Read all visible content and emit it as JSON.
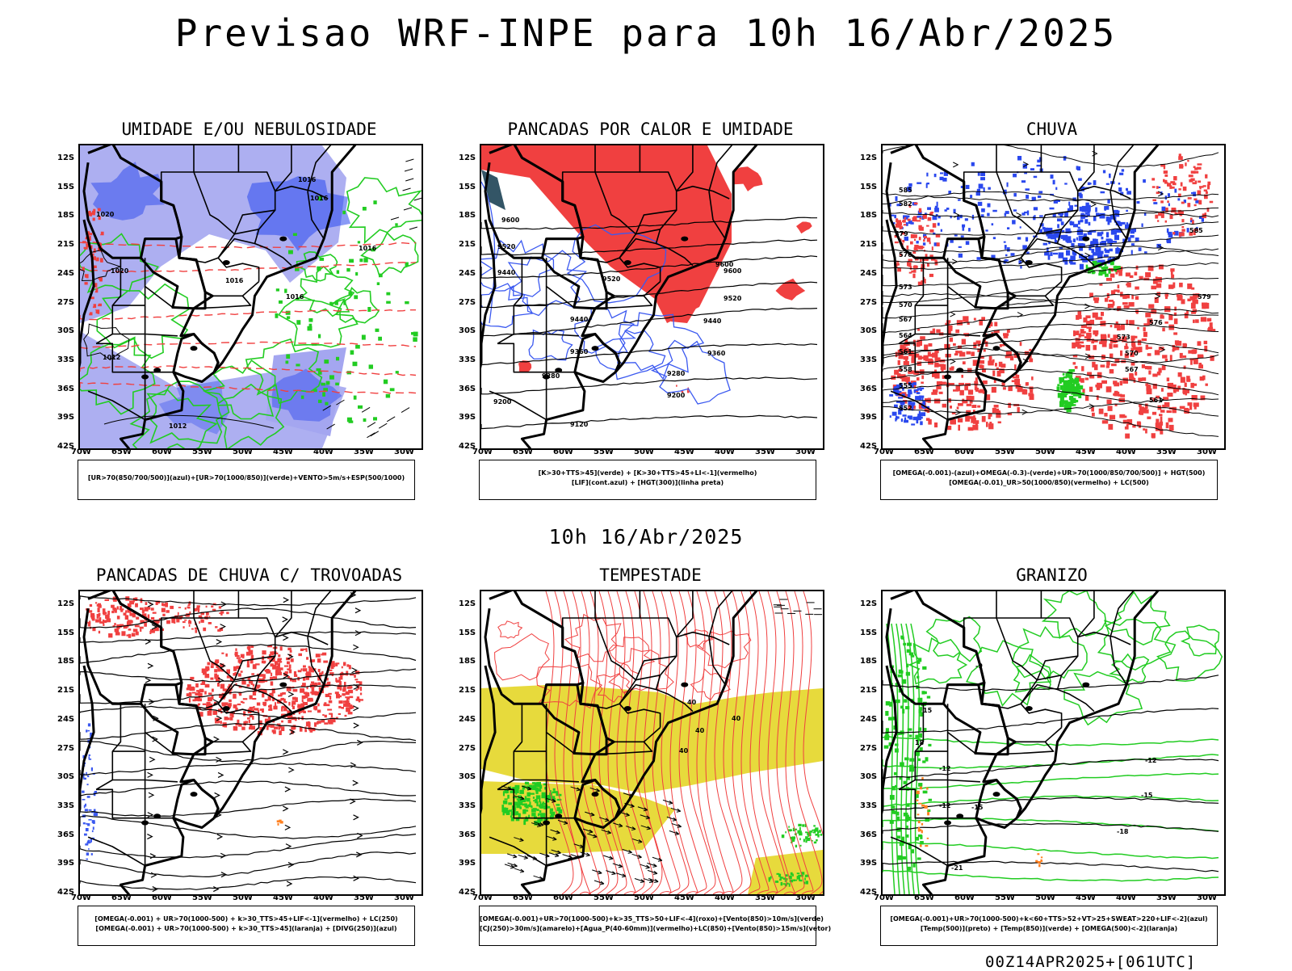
{
  "header": {
    "title": "Previsao WRF-INPE  para 10h 16/Abr/2025"
  },
  "mid_title": "10h 16/Abr/2025",
  "footer": "00Z14APR2025+[061UTC]",
  "axes": {
    "lat_labels": [
      "12S",
      "15S",
      "18S",
      "21S",
      "24S",
      "27S",
      "30S",
      "33S",
      "36S",
      "39S",
      "42S"
    ],
    "lon_labels": [
      "70W",
      "65W",
      "60W",
      "55W",
      "50W",
      "45W",
      "40W",
      "35W",
      "30W"
    ]
  },
  "colors": {
    "blue": "#2a48ee",
    "lightblue": "#a4a6f0",
    "green": "#22cc22",
    "red": "#f04040",
    "yellow": "#e6d832",
    "orange": "#ff8020"
  },
  "chart_data": [
    {
      "type": "map",
      "title": "UMIDADE E/OU NEBULOSIDADE",
      "legend": [
        "[UR>70(850/700/500)](azul)+[UR>70(1000/850)](verde)+VENTO>5m/s+ESP(500/1000)"
      ],
      "contour_labels": [
        "1016",
        "1016",
        "1020",
        "1020",
        "1016",
        "1016",
        "1012",
        "1012",
        "1016"
      ]
    },
    {
      "type": "map",
      "title": "PANCADAS POR CALOR E UMIDADE",
      "legend": [
        "[K>30+TTS>45](verde) + [K>30+TTS>45+LI<-1](vermelho)",
        "[LIF](cont.azul) + [HGT(300)](linha preta)"
      ],
      "contour_labels": [
        "9600",
        "9520",
        "9440",
        "9600",
        "9520",
        "9440",
        "9360",
        "9280",
        "9200",
        "9120",
        "9280",
        "9200",
        "9520",
        "9600",
        "9440",
        "9360"
      ]
    },
    {
      "type": "map",
      "title": "CHUVA",
      "legend": [
        "[OMEGA(-0.001)-(azul)+OMEGA(-0.3)-(verde)+UR>70(1000/850/700/500)] + HGT(500)",
        "[OMEGA(-0.01)_UR>50(1000/850)(vermelho) + LC(500)"
      ],
      "contour_labels": [
        "585",
        "582",
        "579",
        "576",
        "573",
        "570",
        "567",
        "564",
        "561",
        "558",
        "555",
        "552",
        "585",
        "579",
        "576",
        "573",
        "570",
        "567",
        "561"
      ]
    },
    {
      "type": "map",
      "title": "PANCADAS DE CHUVA C/ TROVOADAS",
      "legend": [
        "[OMEGA(-0.001) + UR>70(1000-500) + k>30_TTS>45+LIF<-1](vermelho) + LC(250)",
        "[OMEGA(-0.001) + UR>70(1000-500) + k>30_TTS>45](laranja) + [DIVG(250)](azul)"
      ]
    },
    {
      "type": "map",
      "title": "TEMPESTADE",
      "legend": [
        "[OMEGA(-0.001)+UR>70(1000-500)+k>35_TTS>50+LIF<-4](roxo)+[Vento(850)>10m/s](verde)",
        "[CJ(250)>30m/s](amarelo)+[Agua_P(40-60mm)](vermelho)+LC(850)+[Vento(850)>15m/s](vetor)"
      ],
      "contour_labels": [
        "40",
        "40",
        "40",
        "40"
      ]
    },
    {
      "type": "map",
      "title": "GRANIZO",
      "legend": [
        "[OMEGA(-0.001)+UR>70(1000-500)+k<60+TTS>52+VT>25+SWEAT>220+LIF<-2](azul)",
        "[Temp(500)](preto) + [Temp(850)](verde) + [OMEGA(500)<-2](laranja)"
      ],
      "contour_labels": [
        "-9",
        "-12",
        "-12",
        "-12",
        "-15",
        "-15",
        "-18",
        "-21",
        "15",
        "18"
      ]
    }
  ]
}
